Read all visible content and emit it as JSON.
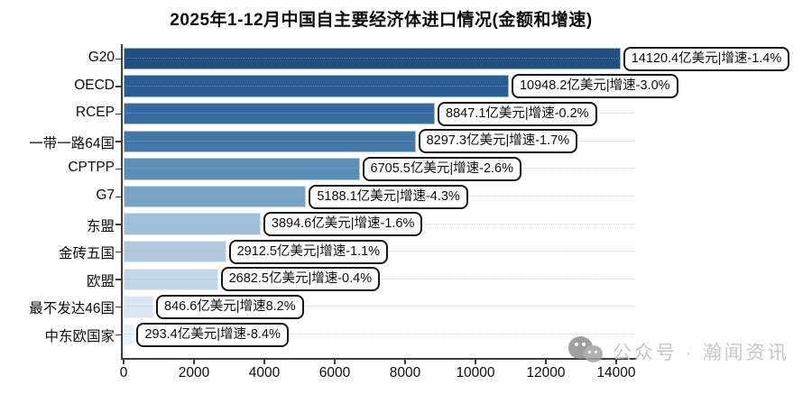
{
  "title": "2025年1-12月中国自主要经济体进口情况(金额和增速)",
  "chart_data": {
    "type": "bar",
    "orientation": "horizontal",
    "title": "2025年1-12月中国自主要经济体进口情况(金额和增速)",
    "categories": [
      "G20",
      "OECD",
      "RCEP",
      "一带一路64国",
      "CPTPP",
      "G7",
      "东盟",
      "金砖五国",
      "欧盟",
      "最不发达46国",
      "中东欧国家"
    ],
    "values": [
      14120.4,
      10948.2,
      8847.1,
      8297.3,
      6705.5,
      5188.1,
      3894.6,
      2912.5,
      2682.5,
      846.6,
      293.4
    ],
    "growth_pct": [
      -1.4,
      -3.0,
      -0.2,
      -1.7,
      -2.6,
      -4.3,
      -1.6,
      -1.1,
      -0.4,
      8.2,
      -8.4
    ],
    "bar_labels": [
      "14120.4亿美元|增速-1.4%",
      "10948.2亿美元|增速-3.0%",
      "8847.1亿美元|增速-0.2%",
      "8297.3亿美元|增速-1.7%",
      "6705.5亿美元|增速-2.6%",
      "5188.1亿美元|增速-4.3%",
      "3894.6亿美元|增速-1.6%",
      "2912.5亿美元|增速-1.1%",
      "2682.5亿美元|增速-0.4%",
      "846.6亿美元|增速8.2%",
      "293.4亿美元|增速-8.4%"
    ],
    "bar_colors": [
      "#20507f",
      "#2a5d92",
      "#386b9e",
      "#4377a6",
      "#5b8fb8",
      "#78a3c5",
      "#a0bfd8",
      "#b0c9de",
      "#c4d7e9",
      "#d9e6f2",
      "#e9f0f8"
    ],
    "x_ticks": [
      "0",
      "2000",
      "4000",
      "6000",
      "8000",
      "10000",
      "12000",
      "14000"
    ],
    "x_tick_values": [
      0,
      2000,
      4000,
      6000,
      8000,
      10000,
      12000,
      14000
    ],
    "xlim": [
      0,
      14550
    ],
    "xlabel": "",
    "ylabel": "",
    "grid": "dotted-horizontal-per-category",
    "legend": "none"
  },
  "watermark": {
    "icon": "wechat-icon",
    "text": "公众号 · 瀚闻资讯"
  }
}
